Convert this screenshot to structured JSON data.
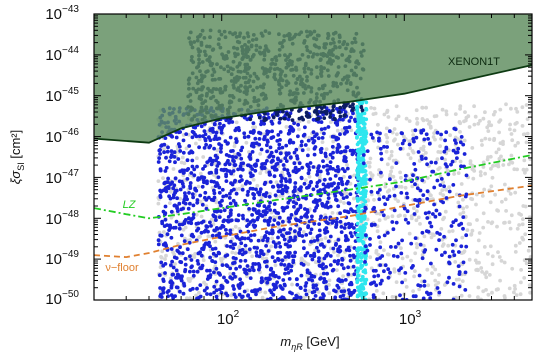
{
  "chart_data": {
    "type": "scatter",
    "x_scale": "log",
    "y_scale": "log",
    "xlim": [
      20,
      5000
    ],
    "ylim": [
      1e-50,
      1e-43
    ],
    "xlabel": {
      "main": "m",
      "sub": "ηR",
      "unit": " [GeV]"
    },
    "ylabel": {
      "main": "ξσ",
      "sub": "SI",
      "unit": " [cm²]"
    },
    "x_ticks": [
      {
        "value": 100,
        "base": "10",
        "exp": "2"
      },
      {
        "value": 1000,
        "base": "10",
        "exp": "3"
      }
    ],
    "y_ticks": [
      {
        "value": -43,
        "base": "10",
        "exp": "−43"
      },
      {
        "value": -44,
        "base": "10",
        "exp": "−44"
      },
      {
        "value": -45,
        "base": "10",
        "exp": "−45"
      },
      {
        "value": -46,
        "base": "10",
        "exp": "−46"
      },
      {
        "value": -47,
        "base": "10",
        "exp": "−47"
      },
      {
        "value": -48,
        "base": "10",
        "exp": "−48"
      },
      {
        "value": -49,
        "base": "10",
        "exp": "−49"
      },
      {
        "value": -50,
        "base": "10",
        "exp": "−50"
      }
    ],
    "grid": false,
    "excluded_region": {
      "name": "XENON1T",
      "color": "#5e8c5e",
      "boundary": [
        [
          20,
          -46.05
        ],
        [
          40,
          -46.15
        ],
        [
          60,
          -45.8
        ],
        [
          100,
          -45.55
        ],
        [
          200,
          -45.35
        ],
        [
          500,
          -45.15
        ],
        [
          1000,
          -44.95
        ],
        [
          2000,
          -44.65
        ],
        [
          5000,
          -44.25
        ]
      ]
    },
    "limit_curves": [
      {
        "name": "LZ",
        "color": "#22cc22",
        "style": "dash-dot",
        "points": [
          [
            20,
            -47.75
          ],
          [
            30,
            -47.9
          ],
          [
            40,
            -48.0
          ],
          [
            60,
            -47.9
          ],
          [
            100,
            -47.75
          ],
          [
            200,
            -47.55
          ],
          [
            500,
            -47.3
          ],
          [
            1000,
            -47.1
          ],
          [
            2000,
            -46.8
          ],
          [
            5000,
            -46.45
          ]
        ]
      },
      {
        "name": "ν−floor",
        "color": "#e08030",
        "style": "dashed",
        "points": [
          [
            20,
            -48.9
          ],
          [
            30,
            -48.95
          ],
          [
            40,
            -48.85
          ],
          [
            60,
            -48.65
          ],
          [
            100,
            -48.45
          ],
          [
            200,
            -48.2
          ],
          [
            500,
            -47.95
          ],
          [
            1000,
            -47.7
          ],
          [
            2000,
            -47.45
          ],
          [
            5000,
            -47.2
          ]
        ]
      }
    ],
    "scan_regions": [
      {
        "name": "light grey points",
        "color": "#d6d6d6",
        "x_range": [
          45,
          5000
        ],
        "logy_range": [
          -50,
          -45.2
        ]
      },
      {
        "name": "blue points",
        "color": "#1a23d8",
        "x_range": [
          45,
          560
        ],
        "logy_range": [
          -50,
          -45.3
        ]
      },
      {
        "name": "dark navy points",
        "color": "#0c1c64",
        "x_range": [
          65,
          600
        ],
        "logy_range": [
          -45.6,
          -43.4
        ]
      },
      {
        "name": "cyan points",
        "color": "#2ee6ee",
        "x_range": [
          550,
          620
        ],
        "logy_range": [
          -50,
          -45.1
        ]
      },
      {
        "name": "scattered blue points",
        "color": "#1a23d8",
        "x_range": [
          600,
          2200
        ],
        "logy_range": [
          -50,
          -45.8
        ]
      }
    ],
    "labels": {
      "xenon": "XENON1T",
      "lz": "LZ",
      "nu_floor": "ν−floor"
    }
  }
}
